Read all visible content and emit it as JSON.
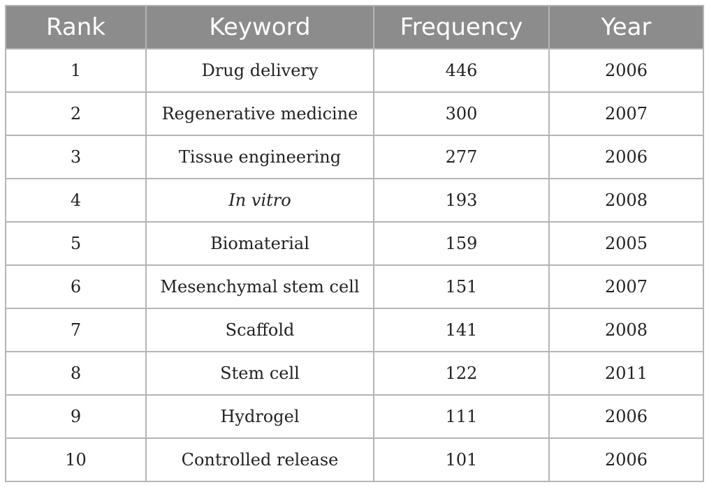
{
  "table": {
    "headers": [
      "Rank",
      "Keyword",
      "Frequency",
      "Year"
    ],
    "rows": [
      {
        "rank": "1",
        "keyword": "Drug delivery",
        "frequency": "446",
        "year": "2006"
      },
      {
        "rank": "2",
        "keyword": "Regenerative medicine",
        "frequency": "300",
        "year": "2007"
      },
      {
        "rank": "3",
        "keyword": "Tissue engineering",
        "frequency": "277",
        "year": "2006"
      },
      {
        "rank": "4",
        "keyword": "In vitro",
        "frequency": "193",
        "year": "2008",
        "keyword_italic": true
      },
      {
        "rank": "5",
        "keyword": "Biomaterial",
        "frequency": "159",
        "year": "2005"
      },
      {
        "rank": "6",
        "keyword": "Mesenchymal stem cell",
        "frequency": "151",
        "year": "2007"
      },
      {
        "rank": "7",
        "keyword": "Scaffold",
        "frequency": "141",
        "year": "2008"
      },
      {
        "rank": "8",
        "keyword": "Stem cell",
        "frequency": "122",
        "year": "2011"
      },
      {
        "rank": "9",
        "keyword": "Hydrogel",
        "frequency": "111",
        "year": "2006"
      },
      {
        "rank": "10",
        "keyword": "Controlled release",
        "frequency": "101",
        "year": "2006"
      }
    ]
  },
  "colors": {
    "header_bg": "#8c8c8c",
    "header_text": "#ffffff",
    "grid_line": "#b5b5b5",
    "cell_text": "#222222"
  }
}
